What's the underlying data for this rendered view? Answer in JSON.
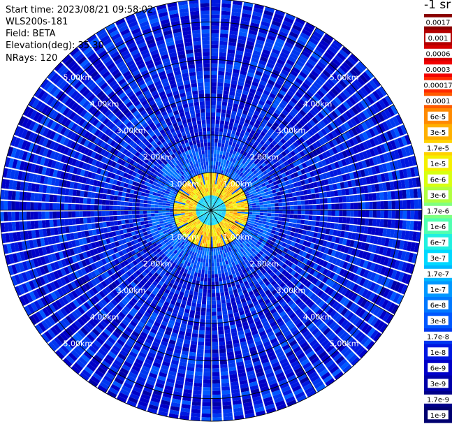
{
  "header": {
    "start_time": "Start time: 2023/08/21 09:58:02",
    "instrument": "WLS200s-181",
    "field": "Field: BETA",
    "elevation": "Elevation(deg): 35.30",
    "nrays": "NRays: 120"
  },
  "colorbar": {
    "unit_label": "-1 sr",
    "labels": [
      "0.0017",
      "0.001",
      "0.0006",
      "0.0003",
      "0.00017",
      "0.0001",
      "6e-5",
      "3e-5",
      "1.7e-5",
      "1e-5",
      "6e-6",
      "3e-6",
      "1.7e-6",
      "1e-6",
      "6e-7",
      "3e-7",
      "1.7e-7",
      "1e-7",
      "6e-8",
      "3e-8",
      "1.7e-8",
      "1e-8",
      "6e-9",
      "3e-9",
      "1.7e-9",
      "1e-9"
    ],
    "colors": [
      "#8a0000",
      "#b40000",
      "#d60000",
      "#f20000",
      "#ff2a00",
      "#ff5a00",
      "#ff8a00",
      "#ffb000",
      "#ffd200",
      "#f5f000",
      "#d8ff10",
      "#b0ff40",
      "#80ff80",
      "#50ffb0",
      "#20f0e0",
      "#00d8ff",
      "#00b8ff",
      "#0098ff",
      "#0078ff",
      "#0058ff",
      "#0038f0",
      "#0018e0",
      "#0000c8",
      "#0000a8",
      "#00008a",
      "#000070"
    ]
  },
  "chart_data": {
    "type": "heatmap",
    "title": "",
    "projection": "polar (PPI scan)",
    "field": "BETA",
    "rays": 120,
    "elevation_deg": 35.3,
    "range_rings": [
      "1.00km",
      "2.00km",
      "3.00km",
      "4.00km",
      "5.00km"
    ],
    "range_km_max": 5.6,
    "value_scale": "log",
    "value_range": [
      1e-09,
      0.0017
    ],
    "description_values": {
      "inner_ring_km": [
        0.0,
        0.4
      ],
      "inner_value_approx": 3e-07,
      "aerosol_ring_km": [
        0.4,
        1.0
      ],
      "aerosol_ring_value_approx": 1.7e-05,
      "outer_background_value_approx": 1e-08
    }
  }
}
